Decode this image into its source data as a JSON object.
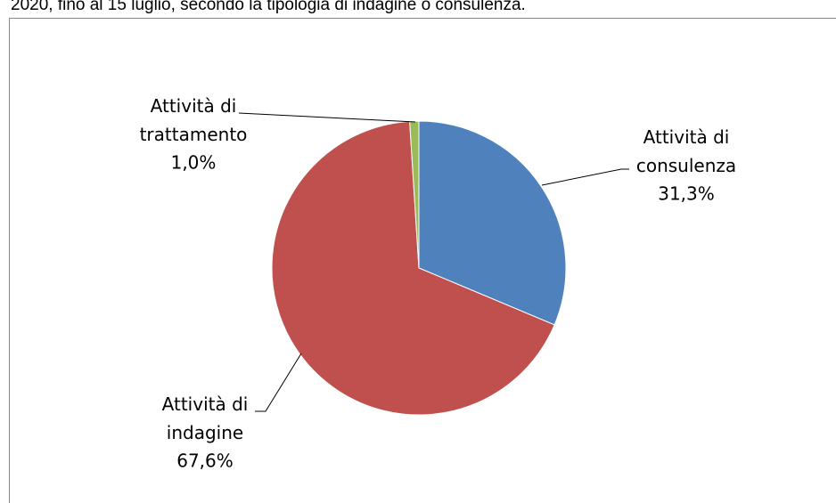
{
  "chart_data": {
    "type": "pie",
    "title": "2020, fino al 15 luglio, secondo la tipologia di indagine o consulenza.",
    "categories": [
      "Attività di consulenza",
      "Attività di indagine",
      "Attività di trattamento"
    ],
    "values": [
      31.3,
      67.6,
      1.0
    ],
    "value_labels": [
      "31,3%",
      "67,6%",
      "1,0%"
    ],
    "colors": [
      "#4f81bd",
      "#c0504d",
      "#9bbb59"
    ]
  }
}
